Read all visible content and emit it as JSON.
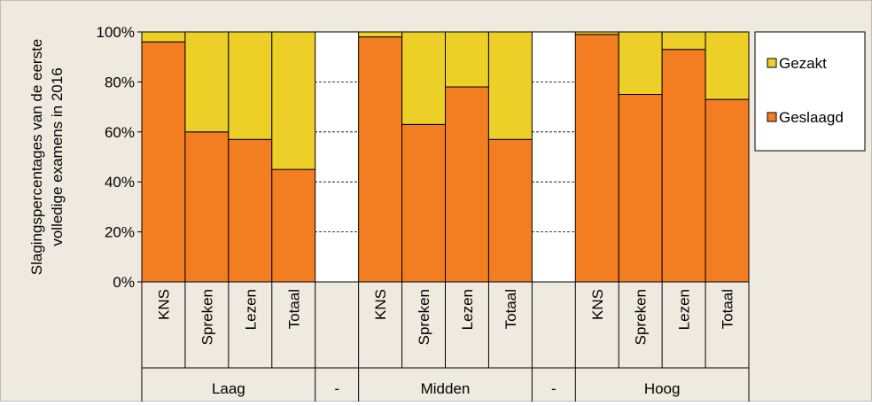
{
  "chart_data": {
    "type": "bar",
    "stacked": true,
    "percent_stacked": true,
    "ylabel_lines": [
      "Slagingspercentages van de eerste",
      "volledige examens in 2016"
    ],
    "ylim": [
      0,
      100
    ],
    "yticks": [
      "0%",
      "20%",
      "40%",
      "60%",
      "80%",
      "100%"
    ],
    "grid": "horizontal dashed",
    "legend_position": "right",
    "categories": [
      "KNS",
      "Spreken",
      "Lezen",
      "Totaal",
      "",
      "KNS",
      "Spreken",
      "Lezen",
      "Totaal",
      "",
      "KNS",
      "Spreken",
      "Lezen",
      "Totaal"
    ],
    "groups": [
      {
        "label": "Laag",
        "size": 4
      },
      {
        "label": "-",
        "size": 1
      },
      {
        "label": "Midden",
        "size": 4
      },
      {
        "label": "-",
        "size": 1
      },
      {
        "label": "Hoog",
        "size": 4
      }
    ],
    "series": [
      {
        "name": "Geslaagd",
        "color": "#F37E21",
        "values": [
          96,
          60,
          57,
          45,
          null,
          98,
          63,
          78,
          57,
          null,
          99,
          75,
          93,
          73
        ]
      },
      {
        "name": "Gezakt",
        "color": "#ECD028",
        "values": [
          4,
          40,
          43,
          55,
          null,
          2,
          37,
          22,
          43,
          null,
          1,
          25,
          7,
          27
        ]
      }
    ],
    "legend": [
      "Gezakt",
      "Geslaagd"
    ]
  }
}
